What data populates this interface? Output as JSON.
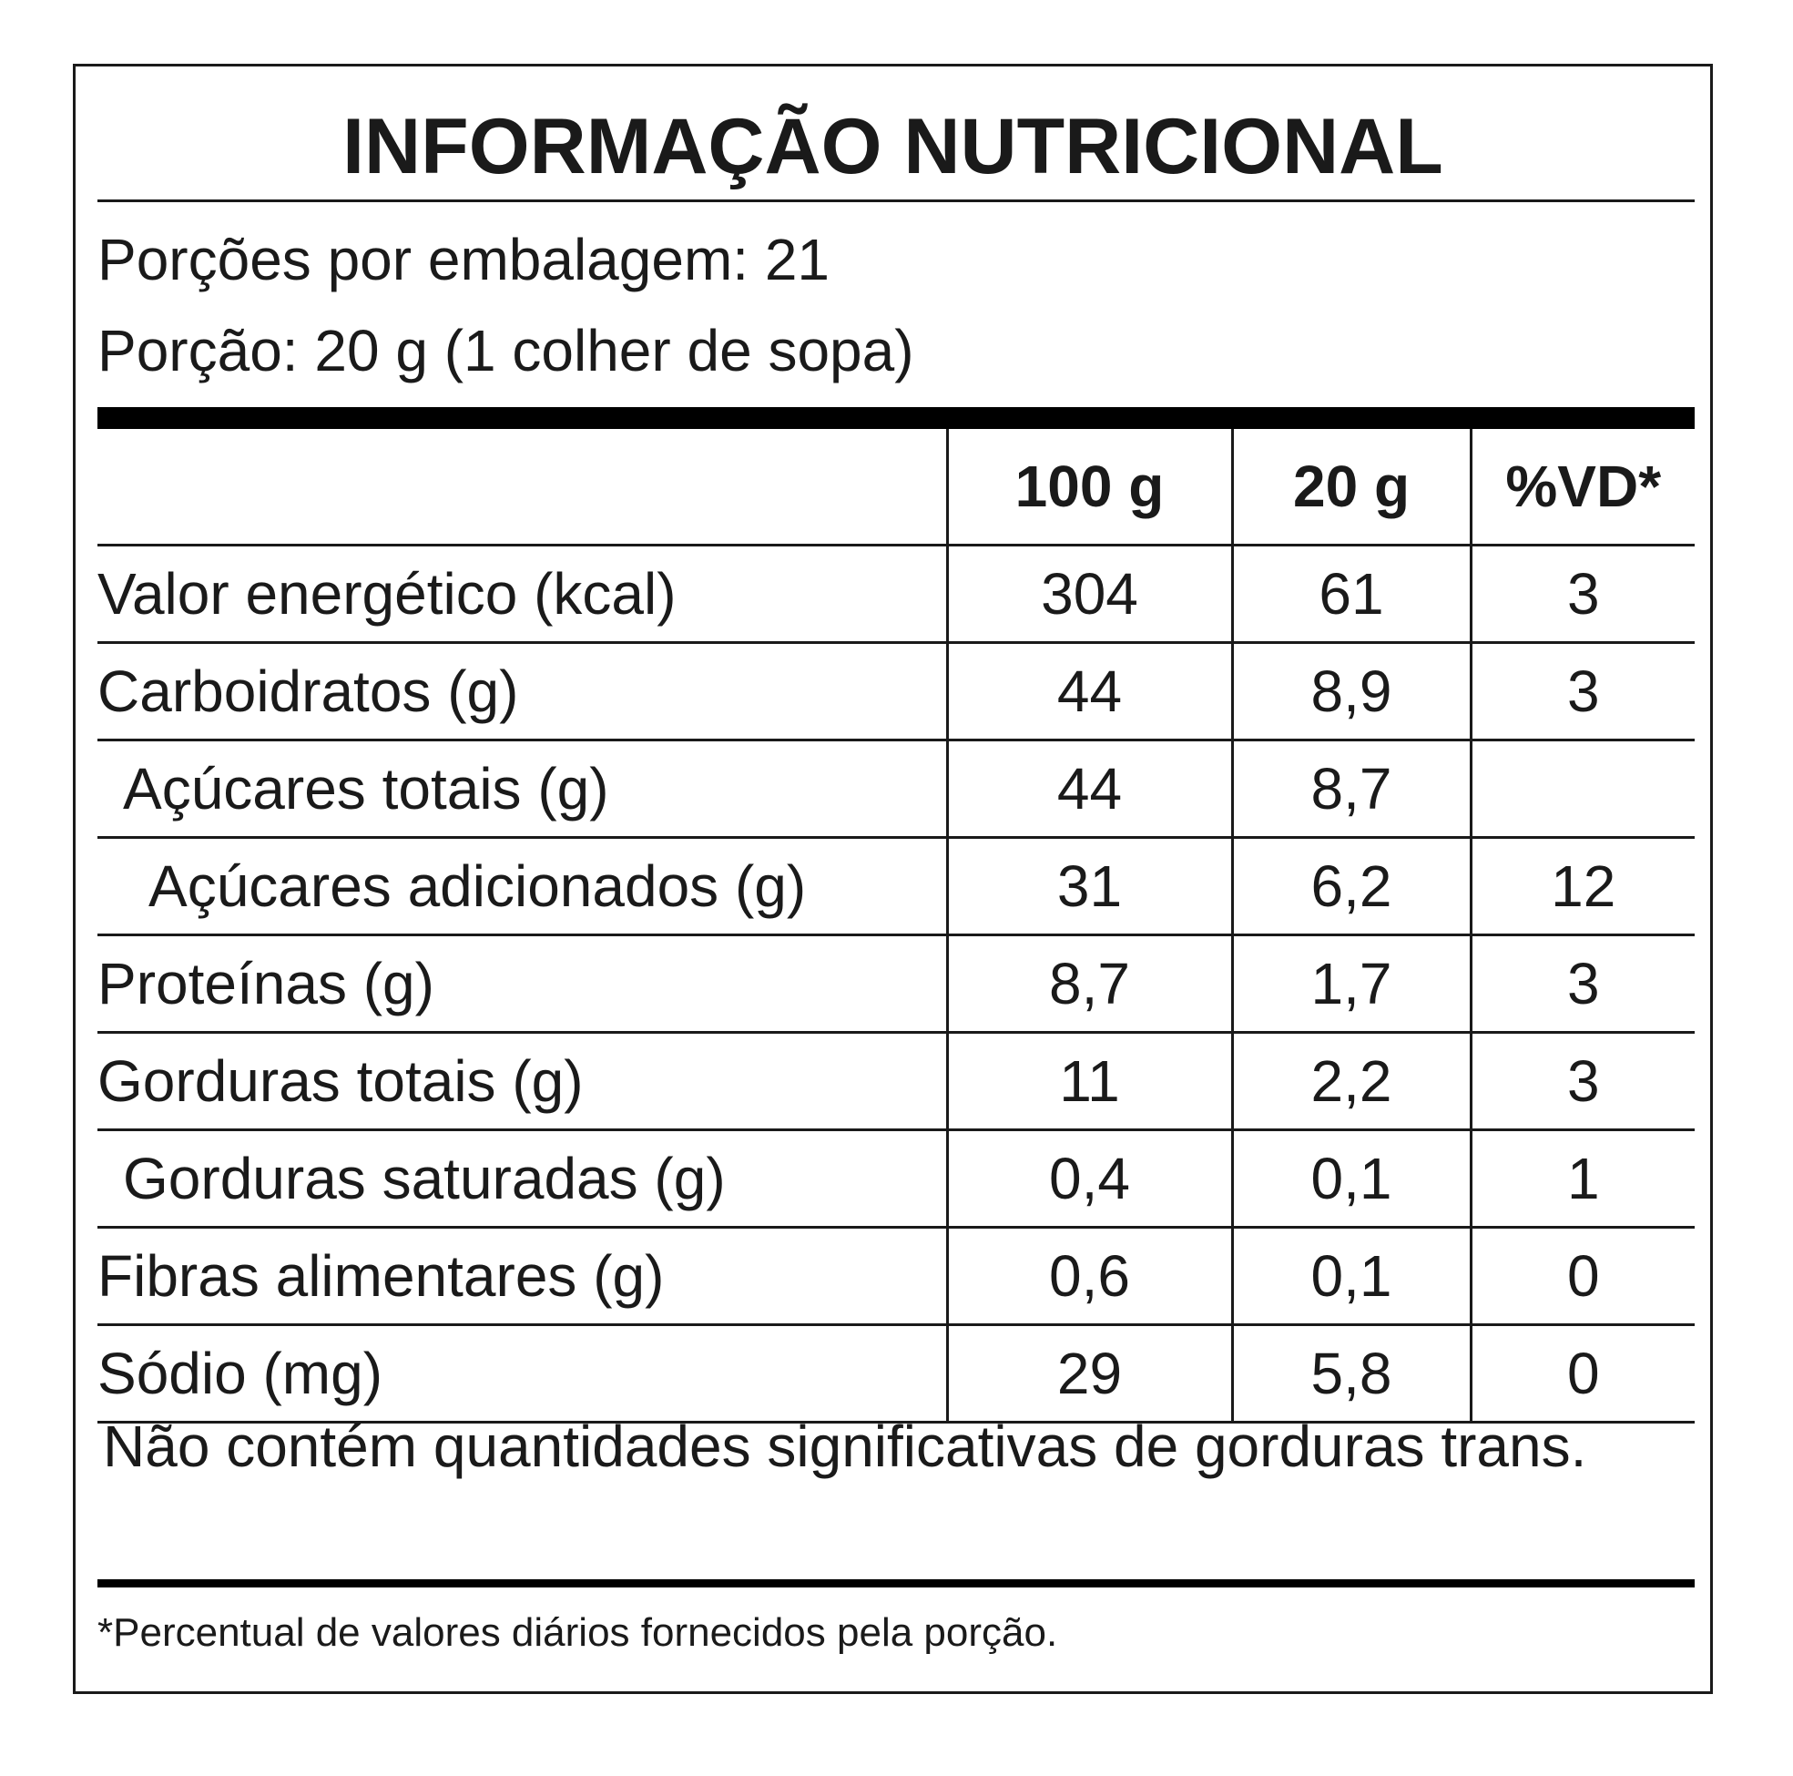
{
  "label": {
    "title": "INFORMAÇÃO NUTRICIONAL",
    "servings_per_package": "Porções por embalagem: 21",
    "serving_size": "Porção: 20 g (1 colher de sopa)",
    "columns": [
      "",
      "100 g",
      "20 g",
      "%VD*"
    ],
    "rows": [
      {
        "name": "Valor energético (kcal)",
        "per100": "304",
        "per20": "61",
        "vd": "3",
        "indent": 0
      },
      {
        "name": "Carboidratos (g)",
        "per100": "44",
        "per20": "8,9",
        "vd": "3",
        "indent": 0
      },
      {
        "name": "Açúcares totais (g)",
        "per100": "44",
        "per20": "8,7",
        "vd": "",
        "indent": 1
      },
      {
        "name": "Açúcares adicionados (g)",
        "per100": "31",
        "per20": "6,2",
        "vd": "12",
        "indent": 2
      },
      {
        "name": "Proteínas (g)",
        "per100": "8,7",
        "per20": "1,7",
        "vd": "3",
        "indent": 0
      },
      {
        "name": "Gorduras totais (g)",
        "per100": "11",
        "per20": "2,2",
        "vd": "3",
        "indent": 0
      },
      {
        "name": "Gorduras saturadas (g)",
        "per100": "0,4",
        "per20": "0,1",
        "vd": "1",
        "indent": 1
      },
      {
        "name": "Fibras alimentares (g)",
        "per100": "0,6",
        "per20": "0,1",
        "vd": "0",
        "indent": 0
      },
      {
        "name": "Sódio (mg)",
        "per100": "29",
        "per20": "5,8",
        "vd": "0",
        "indent": 0
      }
    ],
    "trans_fat_note": "Não contém quantidades significativas de gorduras trans.",
    "footnote": "*Percentual de valores diários fornecidos pela porção."
  }
}
